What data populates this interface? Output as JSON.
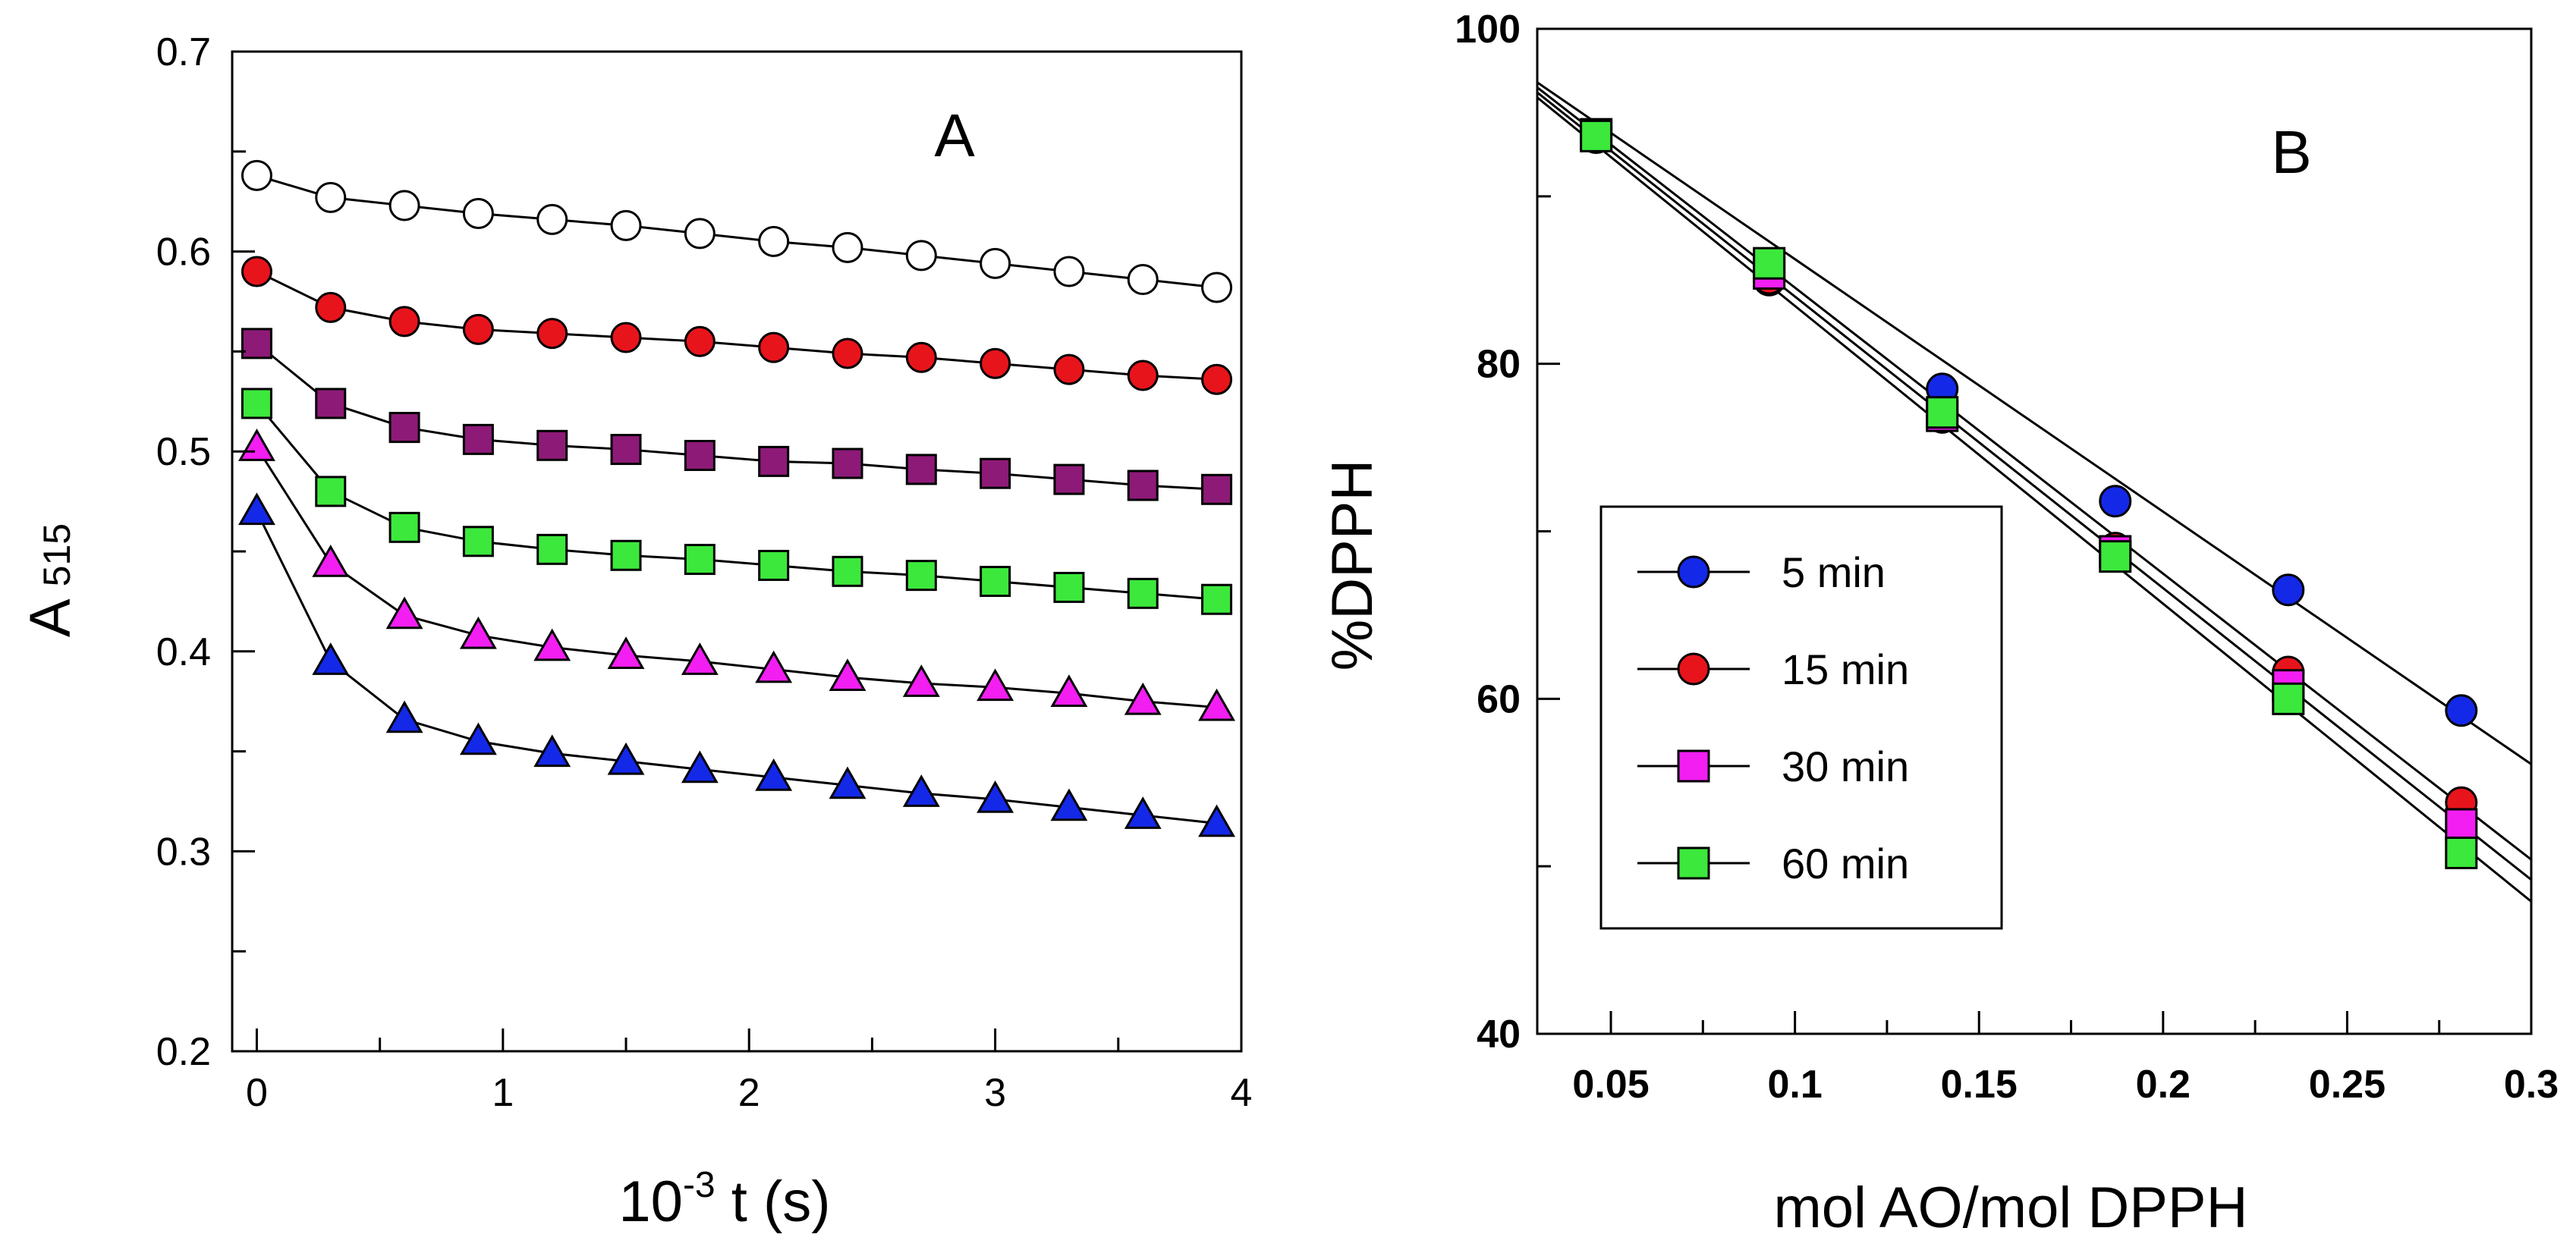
{
  "chart_data": [
    {
      "panel": "A",
      "type": "line",
      "title": "A",
      "xlabel_base": "10",
      "xlabel_exponent": "-3",
      "xlabel_rest": " t (s)",
      "ylabel_main": "A",
      "ylabel_sub": "515",
      "xlim": [
        -0.1,
        4.0
      ],
      "ylim": [
        0.2,
        0.7
      ],
      "xticks": [
        0,
        1,
        2,
        3,
        4
      ],
      "xtick_labels": [
        "0",
        "1",
        "2",
        "3",
        "4"
      ],
      "yticks": [
        0.2,
        0.3,
        0.4,
        0.5,
        0.6,
        0.7
      ],
      "ytick_labels": [
        "0.2",
        "0.3",
        "0.4",
        "0.5",
        "0.6",
        "0.7"
      ],
      "grid": false,
      "x": [
        0,
        0.3,
        0.6,
        0.9,
        1.2,
        1.5,
        1.8,
        2.1,
        2.4,
        2.7,
        3.0,
        3.3,
        3.6,
        3.9
      ],
      "series": [
        {
          "marker": "circle",
          "color": "#ffffff",
          "values": [
            0.638,
            0.627,
            0.623,
            0.619,
            0.616,
            0.613,
            0.609,
            0.605,
            0.602,
            0.598,
            0.594,
            0.59,
            0.586,
            0.582
          ]
        },
        {
          "marker": "circle",
          "color": "#e8141c",
          "values": [
            0.59,
            0.572,
            0.565,
            0.561,
            0.559,
            0.557,
            0.555,
            0.552,
            0.549,
            0.547,
            0.544,
            0.541,
            0.538,
            0.536
          ]
        },
        {
          "marker": "square",
          "color": "#8e1a78",
          "values": [
            0.554,
            0.524,
            0.512,
            0.506,
            0.503,
            0.501,
            0.498,
            0.495,
            0.494,
            0.491,
            0.489,
            0.486,
            0.483,
            0.481
          ]
        },
        {
          "marker": "square",
          "color": "#3ce83c",
          "values": [
            0.524,
            0.48,
            0.462,
            0.455,
            0.451,
            0.448,
            0.446,
            0.443,
            0.44,
            0.438,
            0.435,
            0.432,
            0.429,
            0.426
          ]
        },
        {
          "marker": "triangle",
          "color": "#f21ef2",
          "values": [
            0.502,
            0.444,
            0.418,
            0.408,
            0.402,
            0.398,
            0.395,
            0.391,
            0.387,
            0.384,
            0.382,
            0.379,
            0.375,
            0.372
          ]
        },
        {
          "marker": "triangle",
          "color": "#1428e8",
          "values": [
            0.47,
            0.395,
            0.366,
            0.355,
            0.349,
            0.345,
            0.341,
            0.337,
            0.333,
            0.329,
            0.326,
            0.322,
            0.318,
            0.314
          ]
        }
      ]
    },
    {
      "panel": "B",
      "type": "line",
      "title": "B",
      "xlabel": "mol AO/mol DPPH",
      "ylabel": "%DPPH",
      "xlim": [
        0.03,
        0.3
      ],
      "ylim": [
        40,
        100
      ],
      "xticks": [
        0.05,
        0.1,
        0.15,
        0.2,
        0.25,
        0.3
      ],
      "xtick_labels": [
        "0.05",
        "0.1",
        "0.15",
        "0.2",
        "0.25",
        "0.3"
      ],
      "yticks": [
        40,
        60,
        80,
        100
      ],
      "ytick_labels": [
        "40",
        "60",
        "80",
        "100"
      ],
      "grid": false,
      "legend": "inside-lower-left",
      "x": [
        0.046,
        0.093,
        0.14,
        0.187,
        0.234,
        0.281
      ],
      "series": [
        {
          "name": "5 min",
          "marker": "circle",
          "color": "#1428e8",
          "values": [
            93.5,
            85.0,
            78.5,
            71.8,
            66.5,
            59.3
          ],
          "fit": [
            96.8,
            56.1
          ]
        },
        {
          "name": "15 min",
          "marker": "circle",
          "color": "#e8141c",
          "values": [
            93.6,
            85.1,
            76.8,
            69.0,
            61.6,
            53.8
          ],
          "fit": [
            96.5,
            50.4
          ]
        },
        {
          "name": "30 min",
          "marker": "square",
          "color": "#f21ef2",
          "values": [
            93.7,
            85.4,
            76.9,
            68.8,
            60.8,
            52.5
          ],
          "fit": [
            96.2,
            49.2
          ]
        },
        {
          "name": "60 min",
          "marker": "square",
          "color": "#3ce83c",
          "values": [
            93.6,
            86.0,
            77.1,
            68.5,
            60.0,
            50.8
          ],
          "fit": [
            95.9,
            47.9
          ]
        }
      ]
    }
  ]
}
